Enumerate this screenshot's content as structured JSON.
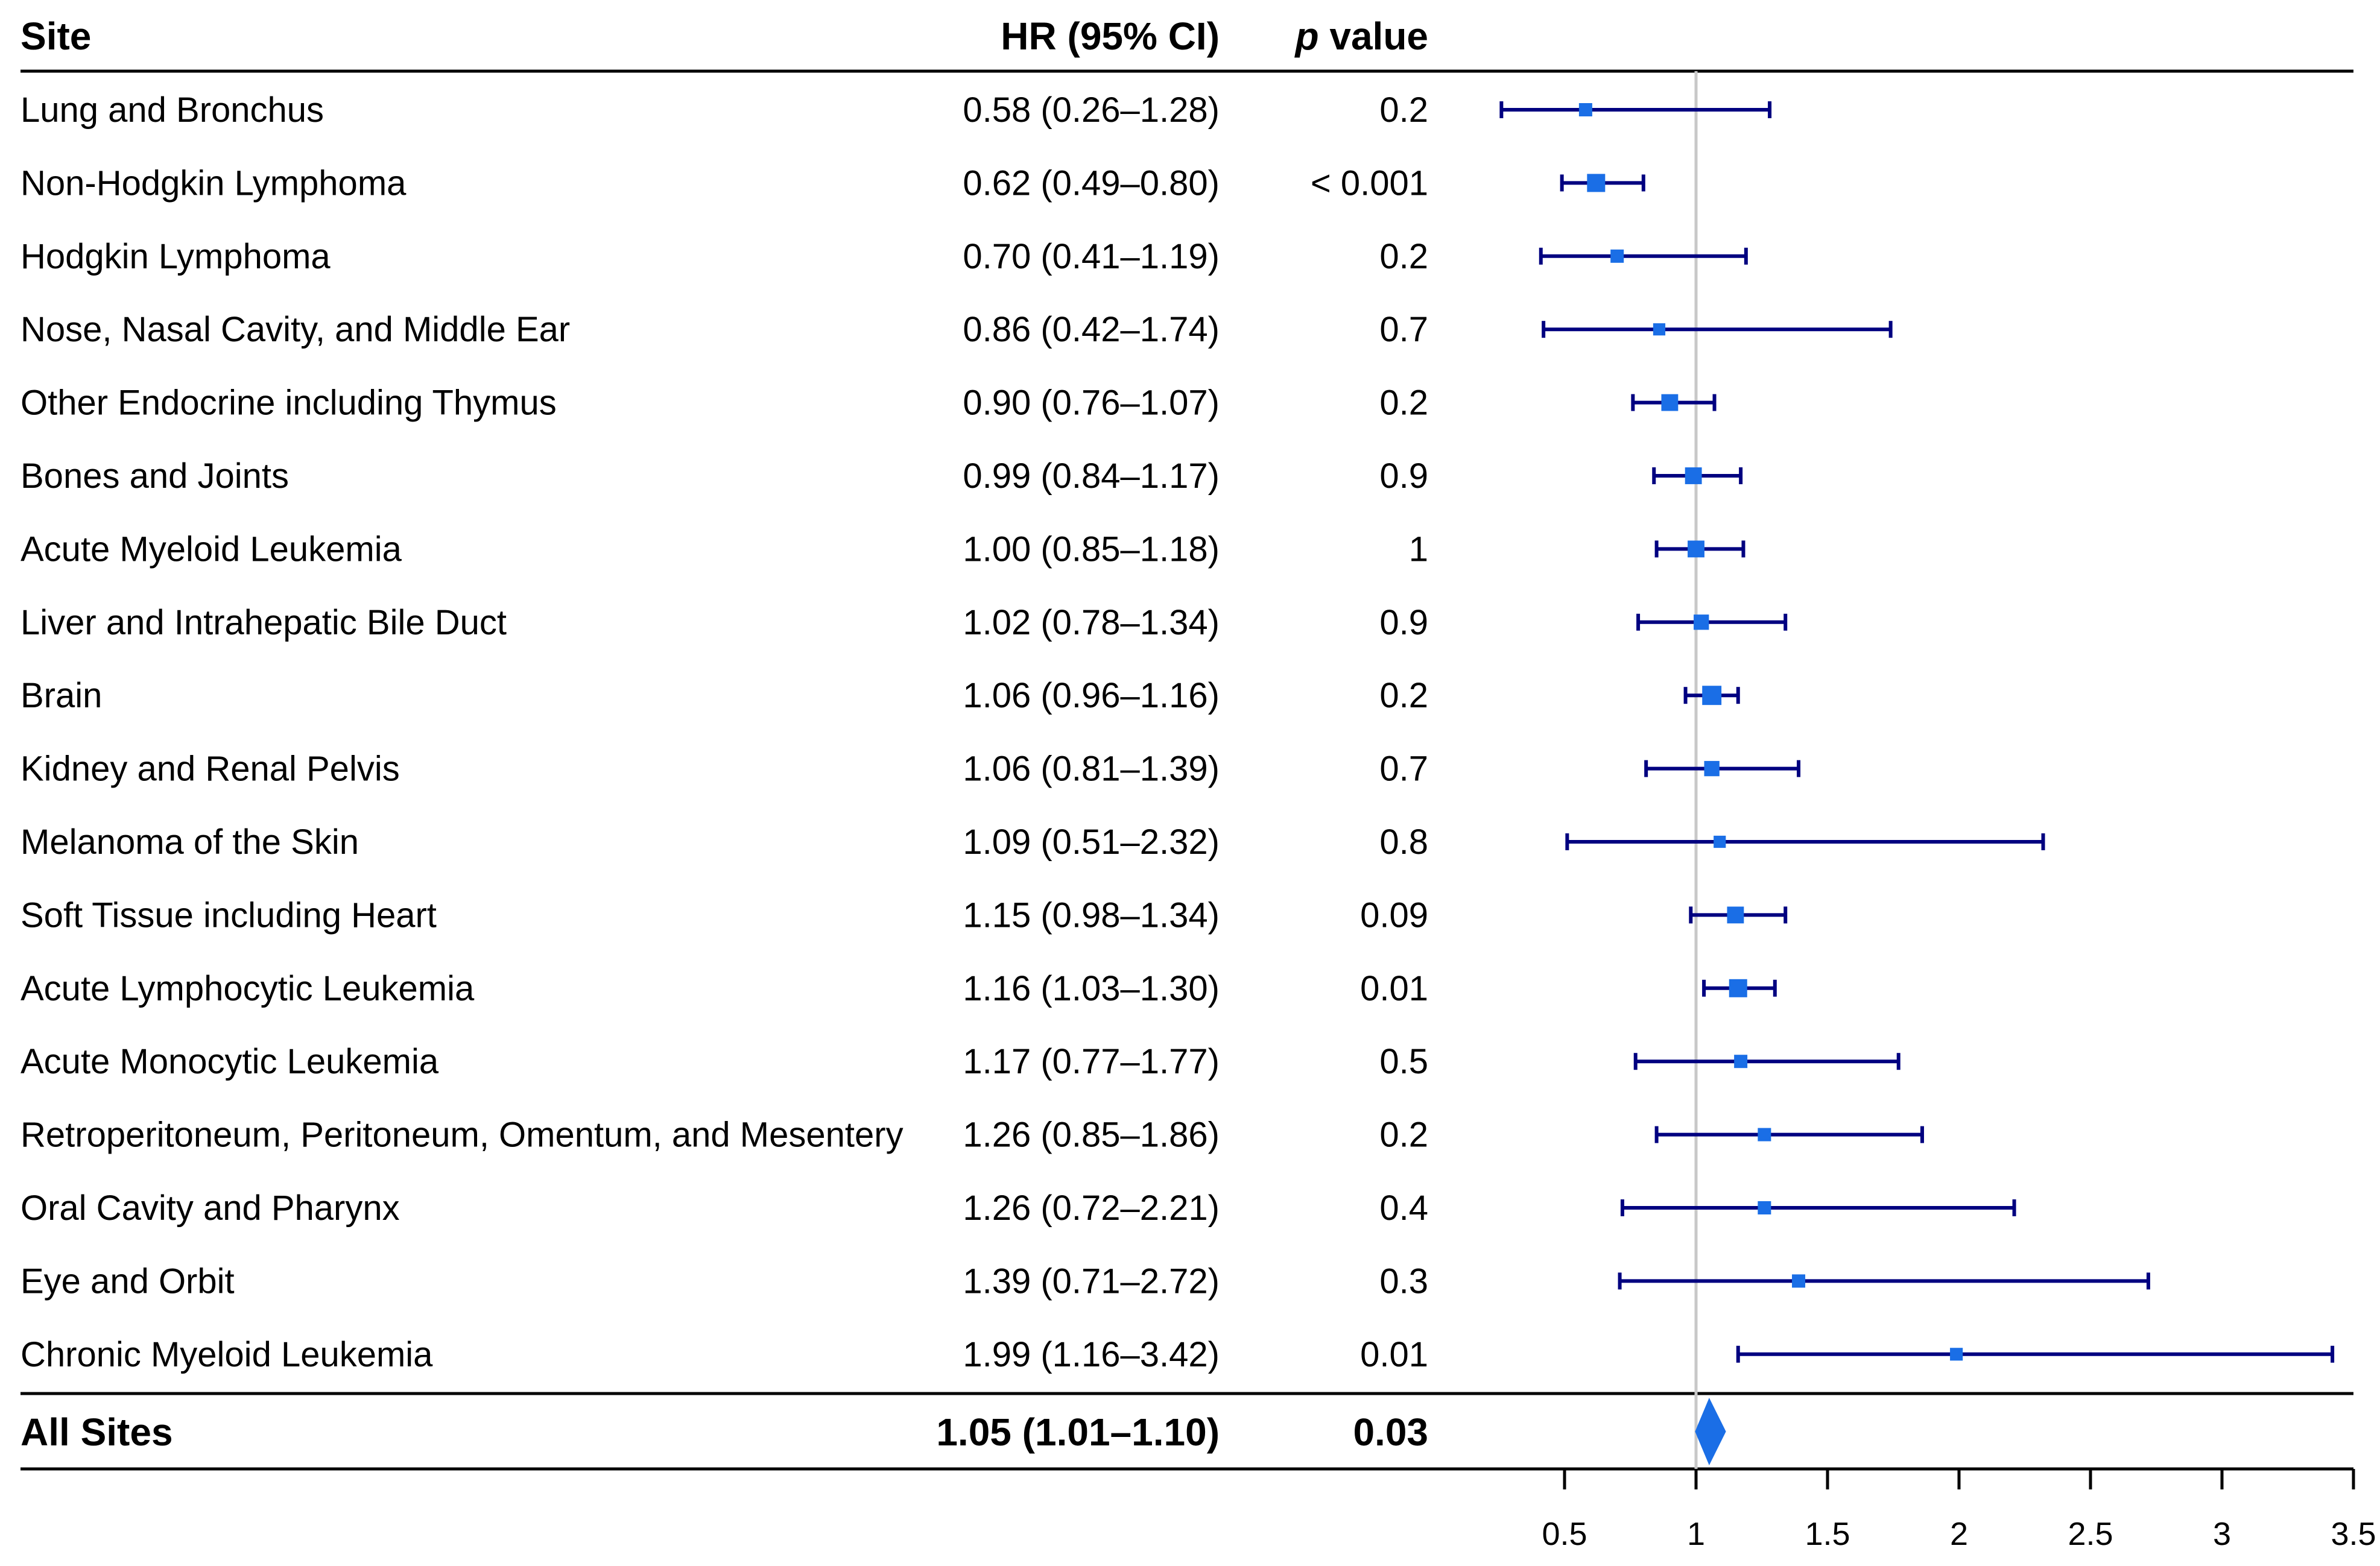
{
  "headers": {
    "site": "Site",
    "hr": "HR (95% CI)",
    "p_italic": "p",
    "p_rest": " value"
  },
  "rows": [
    {
      "site": "Lung and Bronchus",
      "hr_text": "0.58 (0.26–1.28)",
      "p": "0.2"
    },
    {
      "site": "Non-Hodgkin Lymphoma",
      "hr_text": "0.62 (0.49–0.80)",
      "p": "< 0.001"
    },
    {
      "site": "Hodgkin Lymphoma",
      "hr_text": "0.70 (0.41–1.19)",
      "p": "0.2"
    },
    {
      "site": "Nose, Nasal Cavity, and Middle Ear",
      "hr_text": "0.86 (0.42–1.74)",
      "p": "0.7"
    },
    {
      "site": "Other Endocrine including Thymus",
      "hr_text": "0.90 (0.76–1.07)",
      "p": "0.2"
    },
    {
      "site": "Bones and Joints",
      "hr_text": "0.99 (0.84–1.17)",
      "p": "0.9"
    },
    {
      "site": "Acute Myeloid Leukemia",
      "hr_text": "1.00 (0.85–1.18)",
      "p": "1"
    },
    {
      "site": "Liver and Intrahepatic Bile Duct",
      "hr_text": "1.02 (0.78–1.34)",
      "p": "0.9"
    },
    {
      "site": "Brain",
      "hr_text": "1.06 (0.96–1.16)",
      "p": "0.2"
    },
    {
      "site": "Kidney and Renal Pelvis",
      "hr_text": "1.06 (0.81–1.39)",
      "p": "0.7"
    },
    {
      "site": "Melanoma of the Skin",
      "hr_text": "1.09 (0.51–2.32)",
      "p": "0.8"
    },
    {
      "site": "Soft Tissue including Heart",
      "hr_text": "1.15 (0.98–1.34)",
      "p": "0.09"
    },
    {
      "site": "Acute Lymphocytic Leukemia",
      "hr_text": "1.16 (1.03–1.30)",
      "p": "0.01"
    },
    {
      "site": "Acute Monocytic Leukemia",
      "hr_text": "1.17 (0.77–1.77)",
      "p": "0.5"
    },
    {
      "site": "Retroperitoneum, Peritoneum, Omentum, and Mesentery",
      "hr_text": "1.26 (0.85–1.86)",
      "p": "0.2"
    },
    {
      "site": "Oral Cavity and Pharynx",
      "hr_text": "1.26 (0.72–2.21)",
      "p": "0.4"
    },
    {
      "site": "Eye and Orbit",
      "hr_text": "1.39 (0.71–2.72)",
      "p": "0.3"
    },
    {
      "site": "Chronic Myeloid Leukemia",
      "hr_text": "1.99 (1.16–3.42)",
      "p": "0.01"
    }
  ],
  "summary": {
    "site": "All Sites",
    "hr_text": "1.05 (1.01–1.10)",
    "p": "0.03"
  },
  "chart_data": {
    "type": "forest",
    "xlabel": "",
    "xlim": [
      0.0,
      3.5
    ],
    "xticks": [
      0.5,
      1,
      1.5,
      2,
      2.5,
      3,
      3.5
    ],
    "xtick_labels": [
      "0.5",
      "1",
      "1.5",
      "2",
      "2.5",
      "3",
      "3.5"
    ],
    "reference_line": 1,
    "series": [
      {
        "name": "Lung and Bronchus",
        "hr": 0.58,
        "lo": 0.26,
        "hi": 1.28,
        "weight": 1
      },
      {
        "name": "Non-Hodgkin Lymphoma",
        "hr": 0.62,
        "lo": 0.49,
        "hi": 0.8,
        "weight": 4
      },
      {
        "name": "Hodgkin Lymphoma",
        "hr": 0.7,
        "lo": 0.41,
        "hi": 1.19,
        "weight": 1
      },
      {
        "name": "Nose, Nasal Cavity, and Middle Ear",
        "hr": 0.86,
        "lo": 0.42,
        "hi": 1.74,
        "weight": 0.6
      },
      {
        "name": "Other Endocrine including Thymus",
        "hr": 0.9,
        "lo": 0.76,
        "hi": 1.07,
        "weight": 3
      },
      {
        "name": "Bones and Joints",
        "hr": 0.99,
        "lo": 0.84,
        "hi": 1.17,
        "weight": 3
      },
      {
        "name": "Acute Myeloid Leukemia",
        "hr": 1.0,
        "lo": 0.85,
        "hi": 1.18,
        "weight": 3
      },
      {
        "name": "Liver and Intrahepatic Bile Duct",
        "hr": 1.02,
        "lo": 0.78,
        "hi": 1.34,
        "weight": 2
      },
      {
        "name": "Brain",
        "hr": 1.06,
        "lo": 0.96,
        "hi": 1.16,
        "weight": 5
      },
      {
        "name": "Kidney and Renal Pelvis",
        "hr": 1.06,
        "lo": 0.81,
        "hi": 1.39,
        "weight": 2
      },
      {
        "name": "Melanoma of the Skin",
        "hr": 1.09,
        "lo": 0.51,
        "hi": 2.32,
        "weight": 0.6
      },
      {
        "name": "Soft Tissue including Heart",
        "hr": 1.15,
        "lo": 0.98,
        "hi": 1.34,
        "weight": 3
      },
      {
        "name": "Acute Lymphocytic Leukemia",
        "hr": 1.16,
        "lo": 1.03,
        "hi": 1.3,
        "weight": 4
      },
      {
        "name": "Acute Monocytic Leukemia",
        "hr": 1.17,
        "lo": 0.77,
        "hi": 1.77,
        "weight": 1
      },
      {
        "name": "Retroperitoneum, Peritoneum, Omentum, and Mesentery",
        "hr": 1.26,
        "lo": 0.85,
        "hi": 1.86,
        "weight": 1
      },
      {
        "name": "Oral Cavity and Pharynx",
        "hr": 1.26,
        "lo": 0.72,
        "hi": 2.21,
        "weight": 1
      },
      {
        "name": "Eye and Orbit",
        "hr": 1.39,
        "lo": 0.71,
        "hi": 2.72,
        "weight": 1
      },
      {
        "name": "Chronic Myeloid Leukemia",
        "hr": 1.99,
        "lo": 1.16,
        "hi": 3.42,
        "weight": 0.8
      }
    ],
    "summary": {
      "name": "All Sites",
      "hr": 1.05,
      "lo": 1.01,
      "hi": 1.1
    },
    "colors": {
      "ci": "#000080",
      "point": "#1a6ee6",
      "ref": "#c8c8c8",
      "rule": "#000000"
    }
  }
}
